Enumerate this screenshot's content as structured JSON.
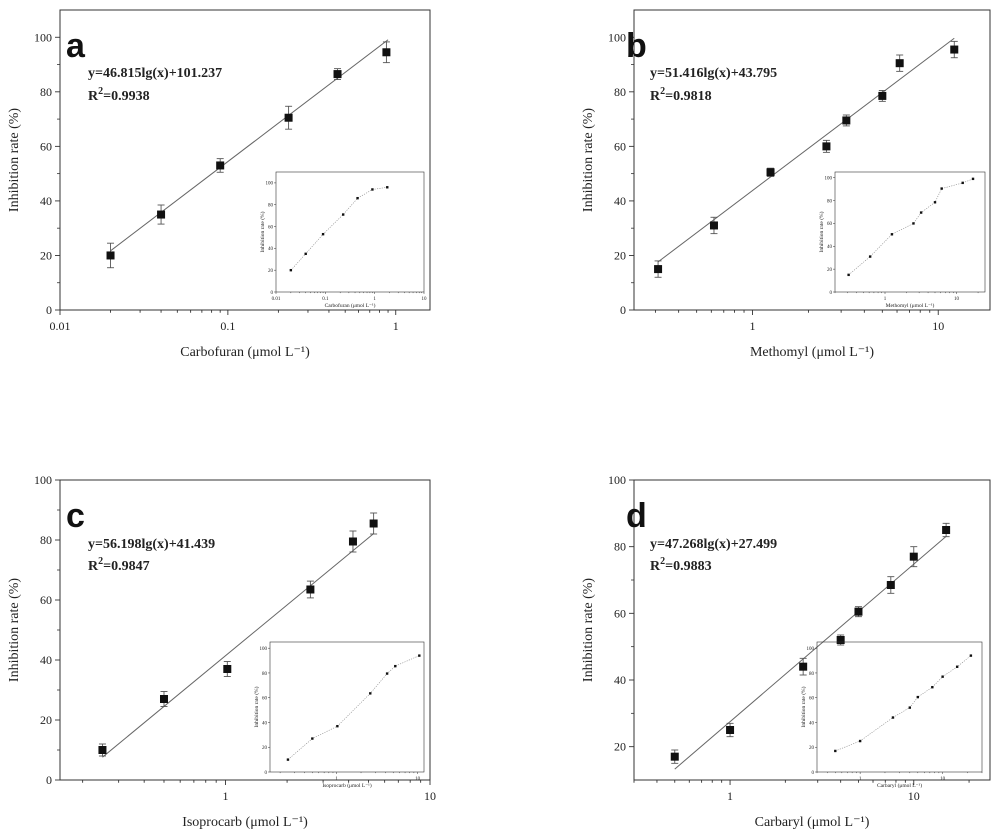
{
  "chart_data": [
    {
      "type": "scatter",
      "panel": "a",
      "xscale": "log",
      "xlim": [
        0.01,
        1.6
      ],
      "ylim": [
        0,
        110
      ],
      "xticks": [
        0.01,
        0.1,
        1
      ],
      "xtick_labels": [
        "0.01",
        "0.1",
        "1"
      ],
      "yticks": [
        0,
        20,
        40,
        60,
        80,
        100
      ],
      "xlabel": "Carbofuran (μmol L⁻¹)",
      "ylabel": "Inhibition rate (%)",
      "equation": "y=46.815lg(x)+101.237",
      "r2_prefix": "R",
      "r2_sup": "2",
      "r2_value": "=0.9938",
      "fit": {
        "slope": 46.815,
        "intercept": 101.237,
        "x_range": [
          0.02,
          0.9
        ]
      },
      "x": [
        0.02,
        0.04,
        0.09,
        0.23,
        0.45,
        0.88
      ],
      "y": [
        20,
        35,
        53,
        70.5,
        86.5,
        94.5
      ],
      "yerr": [
        4.5,
        3.5,
        2.5,
        4.2,
        2.0,
        3.8
      ],
      "inset": {
        "xscale": "log",
        "xlim": [
          0.01,
          10
        ],
        "ylim": [
          0,
          110
        ],
        "xticks": [
          0.01,
          0.1,
          1,
          10
        ],
        "xtick_labels": [
          "0.01",
          "0.1",
          "1",
          "10"
        ],
        "yticks": [
          0,
          20,
          40,
          60,
          80,
          100
        ],
        "xlabel": "Carbofuran (μmol L⁻¹)",
        "ylabel": "Inhibition rate (%)",
        "x": [
          0.02,
          0.04,
          0.09,
          0.23,
          0.45,
          0.9,
          1.8
        ],
        "y": [
          20,
          35,
          53,
          71,
          86,
          94,
          96
        ]
      }
    },
    {
      "type": "scatter",
      "panel": "b",
      "xscale": "log",
      "xlim": [
        0.23,
        19
      ],
      "ylim": [
        0,
        110
      ],
      "xticks": [
        1,
        10
      ],
      "xtick_labels": [
        "1",
        "10"
      ],
      "yticks": [
        0,
        20,
        40,
        60,
        80,
        100
      ],
      "xlabel": "Methomyl (μmol L⁻¹)",
      "ylabel": "Inhibition rate (%)",
      "equation": "y=51.416lg(x)+43.795",
      "r2_prefix": "R",
      "r2_sup": "2",
      "r2_value": "=0.9818",
      "fit": {
        "slope": 51.416,
        "intercept": 43.795,
        "x_range": [
          0.31,
          12.2
        ]
      },
      "x": [
        0.31,
        0.62,
        1.25,
        2.5,
        3.2,
        5.0,
        6.2,
        12.2
      ],
      "y": [
        15,
        31,
        50.5,
        60,
        69.5,
        78.5,
        90.5,
        95.5
      ],
      "yerr": [
        3.0,
        3.0,
        1.5,
        2.2,
        2.0,
        2.0,
        3.0,
        3.0
      ],
      "inset": {
        "xscale": "log",
        "xlim": [
          0.2,
          25
        ],
        "ylim": [
          0,
          105
        ],
        "xticks": [
          1,
          10
        ],
        "xtick_labels": [
          "1",
          "10"
        ],
        "yticks": [
          0,
          20,
          40,
          60,
          80,
          100
        ],
        "xlabel": "Methomyl (μmol L⁻¹)",
        "ylabel": "Inhibition rate (%)",
        "x": [
          0.31,
          0.62,
          1.25,
          2.5,
          3.2,
          5.0,
          6.2,
          12.2,
          17
        ],
        "y": [
          15,
          31,
          50.5,
          60,
          69.5,
          78.5,
          90.5,
          95.5,
          99
        ]
      }
    },
    {
      "type": "scatter",
      "panel": "c",
      "xscale": "log",
      "xlim": [
        0.155,
        10
      ],
      "ylim": [
        0,
        100
      ],
      "xticks": [
        1,
        10
      ],
      "xtick_labels": [
        "1",
        "10"
      ],
      "yticks": [
        0,
        20,
        40,
        60,
        80,
        100
      ],
      "xlabel": "Isoprocarb (μmol L⁻¹)",
      "ylabel": "Inhibition rate (%)",
      "equation": "y=56.198lg(x)+41.439",
      "r2_prefix": "R",
      "r2_sup": "2",
      "r2_value": "=0.9847",
      "fit": {
        "slope": 56.198,
        "intercept": 41.439,
        "x_range": [
          0.25,
          5.3
        ]
      },
      "x": [
        0.25,
        0.5,
        1.02,
        2.6,
        4.2,
        5.3
      ],
      "y": [
        10,
        27,
        37,
        63.5,
        79.5,
        85.5
      ],
      "yerr": [
        2.0,
        2.5,
        2.5,
        2.8,
        3.5,
        3.5
      ],
      "inset": {
        "xscale": "log",
        "xlim": [
          0.15,
          12
        ],
        "ylim": [
          0,
          105
        ],
        "xticks": [
          1,
          10
        ],
        "xtick_labels": [
          "1",
          "10"
        ],
        "yticks": [
          0,
          20,
          40,
          60,
          80,
          100
        ],
        "xlabel": "Isoprocarb (μmol L⁻¹)",
        "ylabel": "Inhibition rate (%)",
        "x": [
          0.25,
          0.5,
          1.02,
          2.6,
          4.2,
          5.3,
          10.5
        ],
        "y": [
          10,
          27,
          37,
          63.5,
          79.5,
          85.5,
          94
        ]
      }
    },
    {
      "type": "scatter",
      "panel": "d",
      "xscale": "log",
      "xlim": [
        0.3,
        26
      ],
      "ylim": [
        10,
        100
      ],
      "xticks": [
        1,
        10
      ],
      "xtick_labels": [
        "1",
        "10"
      ],
      "yticks": [
        20,
        40,
        60,
        80,
        100
      ],
      "xlabel": "Carbaryl (μmol L⁻¹)",
      "ylabel": "Inhibition rate (%)",
      "equation": "y=47.268lg(x)+27.499",
      "r2_prefix": "R",
      "r2_sup": "2",
      "r2_value": "=0.9883",
      "fit": {
        "slope": 47.268,
        "intercept": 27.499,
        "x_range": [
          0.5,
          15
        ]
      },
      "x": [
        0.5,
        1.0,
        2.5,
        4.0,
        5.0,
        7.5,
        10,
        15
      ],
      "y": [
        17,
        25,
        44,
        52,
        60.5,
        68.5,
        77,
        85
      ],
      "yerr": [
        2.0,
        2.0,
        2.5,
        1.5,
        1.5,
        2.5,
        3.0,
        2.0
      ],
      "inset": {
        "xscale": "log",
        "xlim": [
          0.3,
          30
        ],
        "ylim": [
          0,
          105
        ],
        "xticks": [
          1,
          10
        ],
        "xtick_labels": [
          "1",
          "10"
        ],
        "yticks": [
          0,
          20,
          40,
          60,
          80,
          100
        ],
        "xlabel": "Carbaryl (μmol L⁻¹)",
        "ylabel": "Inhibition rate (%)",
        "x": [
          0.5,
          1.0,
          2.5,
          4.0,
          5.0,
          7.5,
          10,
          15,
          22
        ],
        "y": [
          17,
          25,
          44,
          52,
          60.5,
          68.5,
          77,
          85,
          94
        ]
      }
    }
  ]
}
